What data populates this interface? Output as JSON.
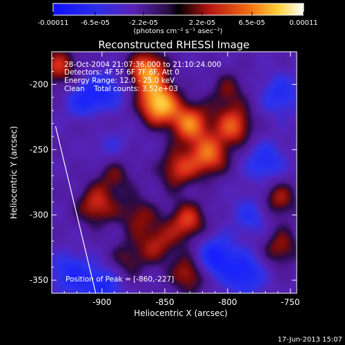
{
  "chart_data": {
    "type": "heatmap",
    "title": "Reconstructed RHESSI Image",
    "xlabel": "Heliocentric X (arcsec)",
    "ylabel": "Heliocentric Y (arcsec)",
    "xlim": [
      -940,
      -745
    ],
    "ylim": [
      -360,
      -175
    ],
    "xticks": [
      -900,
      -850,
      -800,
      -750
    ],
    "yticks": [
      -200,
      -250,
      -300,
      -350
    ],
    "xtick_labels": [
      "-900",
      "-850",
      "-800",
      "-750"
    ],
    "ytick_labels": [
      "-200",
      "-250",
      "-300",
      "-350"
    ],
    "colorbar": {
      "min": -0.00011,
      "max": 0.00011,
      "tick_labels": [
        "-0.00011",
        "-6.5e-05",
        "-2.2e-05",
        "2.2e-05",
        "6.5e-05",
        "0.00011"
      ],
      "unit_label": "(photons cm⁻² s⁻¹ asec⁻²)"
    },
    "colors": {
      "blue": "#2b3cff",
      "indigo": "#3d20b4",
      "purple": "#6a1fb0",
      "black": "#000000",
      "red": "#d7301f",
      "orange": "#f28a1a",
      "yellow": "#fff36b",
      "white": "#ffffff"
    },
    "annotations": {
      "time": "28-Oct-2004 21:07:36.000 to 21:10:24.000",
      "detectors": "Detectors: 4F 5F 6F 7F 8F, Att 0",
      "energy": "Energy Range: 12.0 - 25.0 keV",
      "clean": "Clean    Total counts: 3.52e+03",
      "peak": "Position of Peak = [-860,-227]"
    },
    "limb_line": {
      "start": [
        -937,
        -232
      ],
      "end": [
        -905,
        -360
      ]
    },
    "sources": [
      {
        "x": -855,
        "y": -215,
        "v": 1.0
      },
      {
        "x": -864,
        "y": -190,
        "v": 0.85
      },
      {
        "x": -830,
        "y": -230,
        "v": 0.75
      },
      {
        "x": -815,
        "y": -255,
        "v": 0.7
      },
      {
        "x": -795,
        "y": -232,
        "v": 0.65
      },
      {
        "x": -840,
        "y": -265,
        "v": 0.55
      },
      {
        "x": -905,
        "y": -293,
        "v": 0.55
      },
      {
        "x": -832,
        "y": -305,
        "v": 0.6
      },
      {
        "x": -856,
        "y": -322,
        "v": 0.45
      },
      {
        "x": -830,
        "y": -345,
        "v": 0.55
      },
      {
        "x": -934,
        "y": -187,
        "v": 0.55
      },
      {
        "x": -872,
        "y": -300,
        "v": 0.4
      },
      {
        "x": -760,
        "y": -288,
        "v": 0.5
      },
      {
        "x": -758,
        "y": -325,
        "v": 0.45
      },
      {
        "x": -902,
        "y": -232,
        "v": 0.3
      },
      {
        "x": -890,
        "y": -270,
        "v": 0.35
      },
      {
        "x": -800,
        "y": -205,
        "v": 0.35
      },
      {
        "x": -880,
        "y": -335,
        "v": 0.35
      },
      {
        "x": -913,
        "y": -212,
        "v": -0.55
      },
      {
        "x": -895,
        "y": -205,
        "v": -0.4
      },
      {
        "x": -810,
        "y": -333,
        "v": -0.7
      },
      {
        "x": -786,
        "y": -345,
        "v": -0.6
      },
      {
        "x": -770,
        "y": -260,
        "v": -0.5
      },
      {
        "x": -758,
        "y": -208,
        "v": -0.45
      },
      {
        "x": -925,
        "y": -345,
        "v": -0.5
      },
      {
        "x": -900,
        "y": -355,
        "v": -0.55
      },
      {
        "x": -896,
        "y": -243,
        "v": -0.35
      },
      {
        "x": -780,
        "y": -300,
        "v": -0.4
      }
    ],
    "footer": "17-Jun-2013 15:07"
  }
}
